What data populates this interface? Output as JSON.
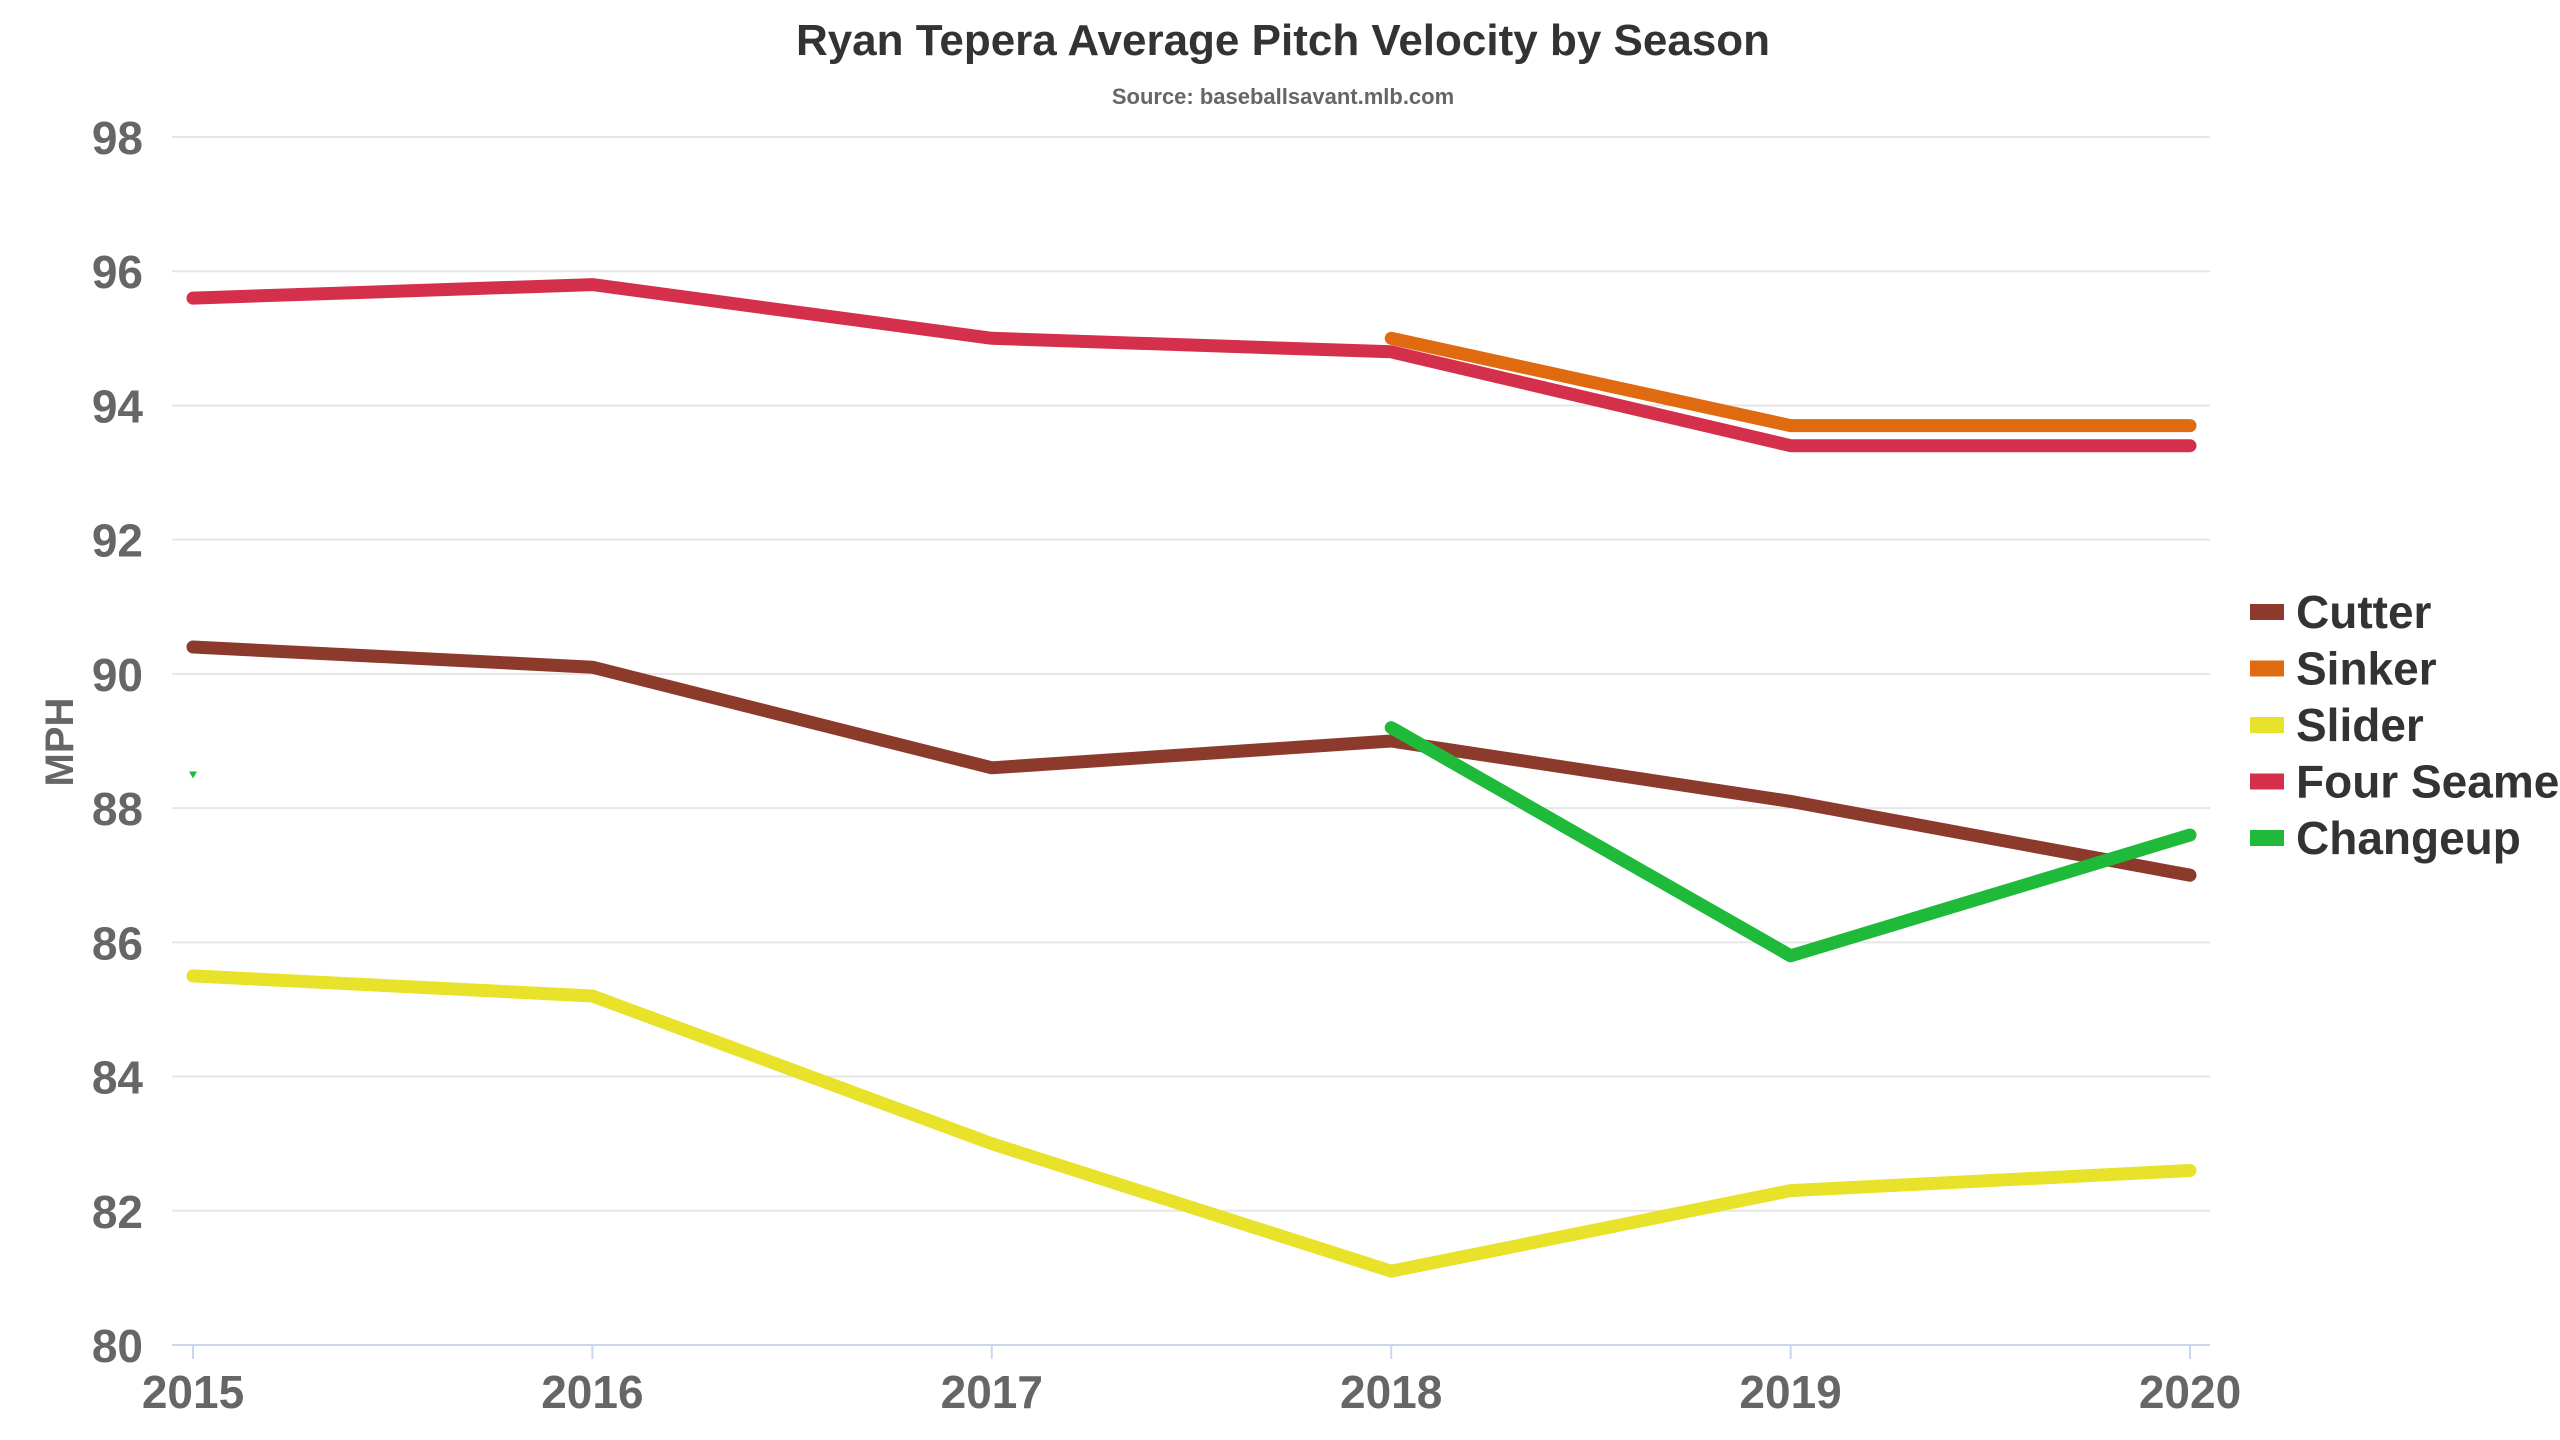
{
  "chart_data": {
    "type": "line",
    "title": "Ryan Tepera Average Pitch Velocity by Season",
    "subtitle": "Source: baseballsavant.mlb.com",
    "xlabel": "",
    "ylabel": "MPH",
    "categories": [
      "2015",
      "2016",
      "2017",
      "2018",
      "2019",
      "2020"
    ],
    "ylim": [
      80,
      98
    ],
    "yticks": [
      80,
      82,
      84,
      86,
      88,
      90,
      92,
      94,
      96,
      98
    ],
    "grid": true,
    "legend_position": "right",
    "series": [
      {
        "name": "Cutter",
        "color": "#8B3A2B",
        "values": [
          90.4,
          90.1,
          88.6,
          89.0,
          88.1,
          87.0
        ]
      },
      {
        "name": "Sinker",
        "color": "#E06A10",
        "values": [
          null,
          null,
          null,
          95.0,
          93.7,
          93.7
        ]
      },
      {
        "name": "Slider",
        "color": "#E8E22A",
        "values": [
          85.5,
          85.2,
          83.0,
          81.1,
          82.3,
          82.6
        ]
      },
      {
        "name": "Four Seamer",
        "color": "#D5304B",
        "values": [
          95.6,
          95.8,
          95.0,
          94.8,
          93.4,
          93.4
        ]
      },
      {
        "name": "Changeup",
        "color": "#20BA3A",
        "values": [
          88.5,
          null,
          null,
          89.2,
          85.8,
          87.6
        ]
      }
    ]
  }
}
